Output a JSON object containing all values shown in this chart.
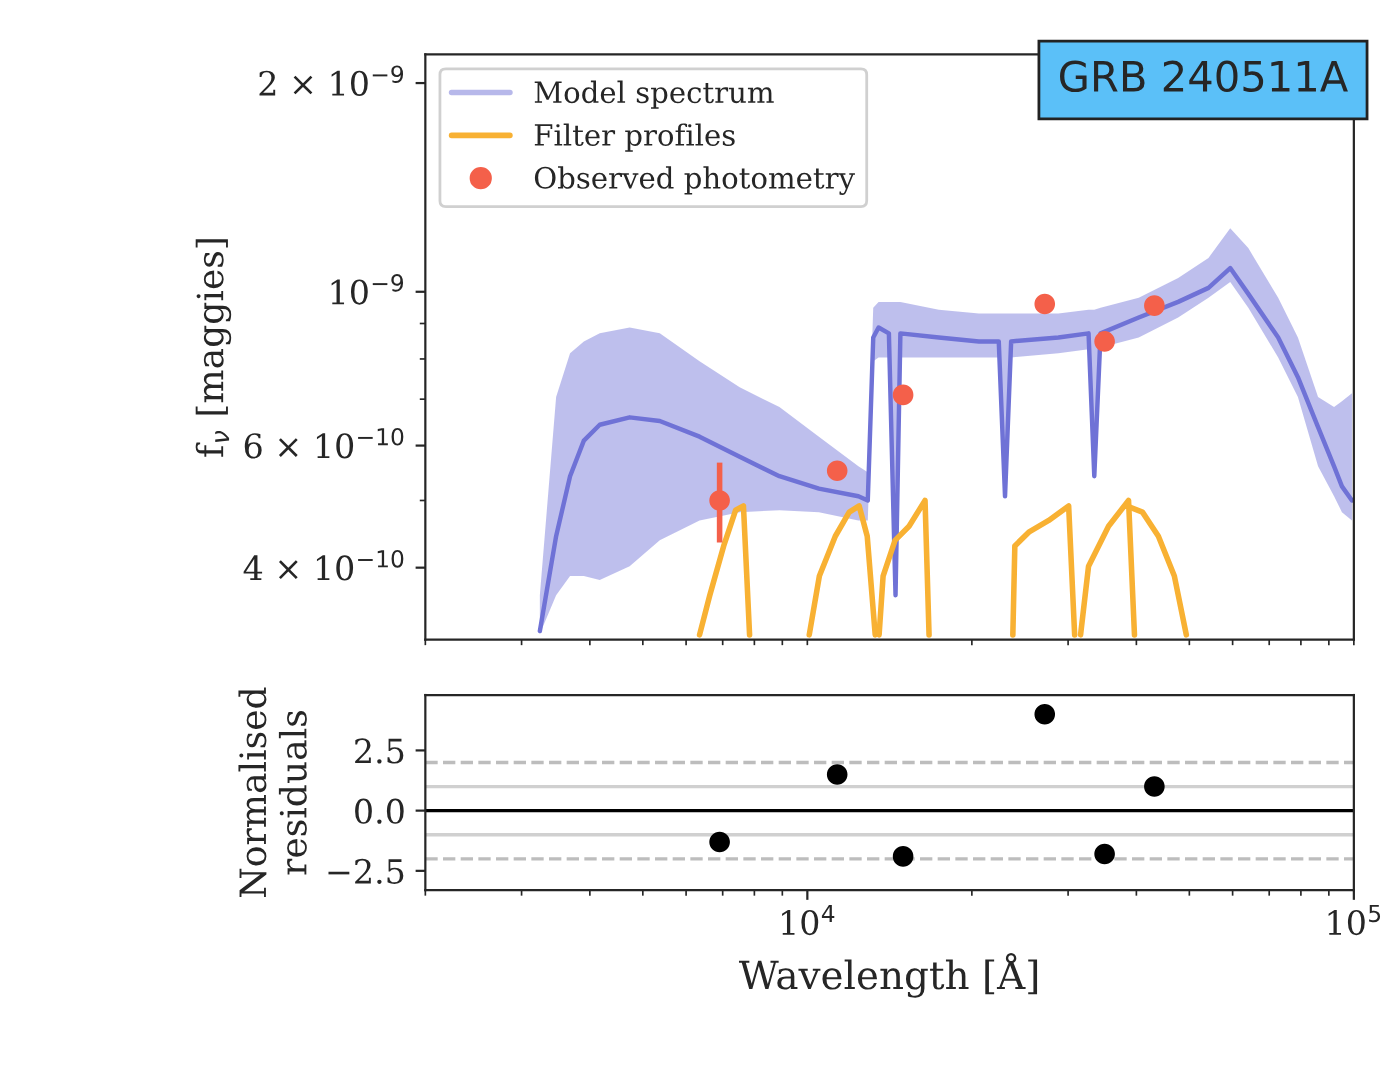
{
  "chart_data": [
    {
      "type": "line",
      "ylabel": "f$_{ν}$ [maggies]",
      "log": "xy",
      "grid": false,
      "legend": "top left",
      "tick_labels": "y",
      "annotations": [
        "GRB 240511A"
      ],
      "xlim": [
        2000,
        100000
      ],
      "xticks": [
        {
          "value": 2000,
          "label": null
        },
        {
          "value": 3000,
          "label": null
        },
        {
          "value": 4000,
          "label": null
        },
        {
          "value": 5000,
          "label": null
        },
        {
          "value": 6000,
          "label": null
        },
        {
          "value": 7000,
          "label": null
        },
        {
          "value": 8000,
          "label": null
        },
        {
          "value": 9000,
          "label": null
        },
        {
          "value": 10000,
          "label": null
        },
        {
          "value": 20000,
          "label": null
        },
        {
          "value": 30000,
          "label": null
        },
        {
          "value": 40000,
          "label": null
        },
        {
          "value": 50000,
          "label": null
        },
        {
          "value": 60000,
          "label": null
        },
        {
          "value": 70000,
          "label": null
        },
        {
          "value": 80000,
          "label": null
        },
        {
          "value": 90000,
          "label": null
        },
        {
          "value": 100000,
          "label": null
        }
      ],
      "ylim": [
        3.15e-10,
        2.2e-09
      ],
      "yticks": [
        {
          "value": 4e-10,
          "label": "4 × 10$^{−10}$"
        },
        {
          "value": 5e-10,
          "label": null
        },
        {
          "value": 6e-10,
          "label": "6 × 10$^{−10}$"
        },
        {
          "value": 7e-10,
          "label": null
        },
        {
          "value": 8e-10,
          "label": null
        },
        {
          "value": 9e-10,
          "label": null
        },
        {
          "value": 1e-09,
          "label": "10$^{−9}$"
        },
        {
          "value": 2e-09,
          "label": "2 × 10$^{−9}$"
        }
      ],
      "series": [
        {
          "name": "Model spectrum",
          "type": "line",
          "color": "#6f72d6",
          "line_style": "solid",
          "x": [
            3240,
            3470,
            3680,
            3900,
            4170,
            4730,
            5370,
            6350,
            7520,
            8890,
            10500,
            12400,
            12900,
            13200,
            13500,
            14100,
            14500,
            14800,
            17400,
            20600,
            22400,
            23000,
            23600,
            28800,
            32700,
            33500,
            34400,
            40400,
            47700,
            54200,
            59400,
            64100,
            72700,
            79000,
            86000,
            92000,
            95100,
            99200
          ],
          "values": [
            3.24e-10,
            4.44e-10,
            5.42e-10,
            6.1e-10,
            6.43e-10,
            6.59e-10,
            6.51e-10,
            6.18e-10,
            5.78e-10,
            5.42e-10,
            5.2e-10,
            5.07e-10,
            5e-10,
            8.59e-10,
            8.88e-10,
            8.71e-10,
            3.65e-10,
            8.71e-10,
            8.59e-10,
            8.48e-10,
            8.48e-10,
            5.07e-10,
            8.48e-10,
            8.59e-10,
            8.71e-10,
            5.42e-10,
            8.71e-10,
            9.18e-10,
            9.67e-10,
            1.013e-09,
            1.082e-09,
            9.93e-10,
            8.59e-10,
            7.53e-10,
            6.38e-10,
            5.6e-10,
            5.24e-10,
            5e-10
          ],
          "upper": [
            3.65e-10,
            7.05e-10,
            8.15e-10,
            8.48e-10,
            8.71e-10,
            8.88e-10,
            8.71e-10,
            7.94e-10,
            7.28e-10,
            6.82e-10,
            6.18e-10,
            5.6e-10,
            5.49e-10,
            9.48e-10,
            9.67e-10,
            9.67e-10,
            9.67e-10,
            9.67e-10,
            9.42e-10,
            9.3e-10,
            9.3e-10,
            9.3e-10,
            9.3e-10,
            9.3e-10,
            9.42e-10,
            9.42e-10,
            9.48e-10,
            9.8e-10,
            1.047e-09,
            1.119e-09,
            1.235e-09,
            1.156e-09,
            9.8e-10,
            8.59e-10,
            7.05e-10,
            6.82e-10,
            6.95e-10,
            7.14e-10
          ],
          "lower": [
            3.21e-10,
            3.65e-10,
            3.89e-10,
            3.89e-10,
            3.84e-10,
            4.02e-10,
            4.38e-10,
            4.68e-10,
            4.81e-10,
            4.84e-10,
            4.81e-10,
            4.68e-10,
            4.68e-10,
            7.94e-10,
            8.04e-10,
            8.04e-10,
            3.65e-10,
            8.04e-10,
            8.04e-10,
            8.04e-10,
            8.04e-10,
            5.07e-10,
            8.04e-10,
            8.15e-10,
            8.26e-10,
            5.42e-10,
            8.31e-10,
            8.59e-10,
            9.18e-10,
            9.8e-10,
            1.033e-09,
            9.48e-10,
            8.04e-10,
            7.05e-10,
            5.6e-10,
            5.07e-10,
            4.81e-10,
            4.68e-10
          ]
        },
        {
          "name": "Filter profiles",
          "type": "line",
          "color": "#f8b133",
          "x": [
            6350,
            6630,
            7030,
            7390,
            7640,
            7840
          ],
          "values": [
            3.2e-10,
            3.65e-10,
            4.3e-10,
            4.84e-10,
            4.91e-10,
            3.2e-10
          ]
        },
        {
          "type": "line",
          "color": "#f8b133",
          "x": [
            10080,
            10520,
            11250,
            11930,
            12440,
            12870,
            13310
          ],
          "values": [
            3.2e-10,
            3.89e-10,
            4.44e-10,
            4.81e-10,
            4.91e-10,
            4.44e-10,
            3.2e-10
          ]
        },
        {
          "type": "line",
          "color": "#f8b133",
          "x": [
            13530,
            13760,
            14470,
            15350,
            16420,
            16700
          ],
          "values": [
            3.2e-10,
            3.89e-10,
            4.38e-10,
            4.59e-10,
            5e-10,
            3.2e-10
          ]
        },
        {
          "type": "line",
          "color": "#f8b133",
          "x": [
            23770,
            23970,
            25420,
            27650,
            30070,
            30840
          ],
          "values": [
            3.2e-10,
            4.3e-10,
            4.5e-10,
            4.68e-10,
            4.91e-10,
            3.2e-10
          ]
        },
        {
          "type": "line",
          "color": "#f8b133",
          "x": [
            31620,
            32700,
            35570,
            38700,
            39680
          ],
          "values": [
            3.2e-10,
            4.02e-10,
            4.59e-10,
            5e-10,
            3.2e-10
          ]
        },
        {
          "type": "line",
          "color": "#f8b133",
          "x": [
            38370,
            41040,
            43890,
            46940,
            49370
          ],
          "values": [
            4.91e-10,
            4.81e-10,
            4.44e-10,
            3.89e-10,
            3.2e-10
          ]
        },
        {
          "name": "Observed photometry",
          "type": "scatter",
          "color": "#f4604a",
          "marker": "circle",
          "x": [
            6910,
            11340,
            14970,
            27190,
            34990,
            43150
          ],
          "values": [
            5e-10,
            5.52e-10,
            7.1e-10,
            9.6e-10,
            8.48e-10,
            9.55e-10
          ],
          "errors": [
            [
              4.35e-10,
              5.67e-10
            ],
            null,
            null,
            null,
            null,
            null
          ]
        }
      ]
    },
    {
      "type": "scatter",
      "xlabel": "Wavelength [Å]",
      "ylabel": "Normalised\nresiduals",
      "log": "x",
      "grid": false,
      "xlim": [
        2000,
        100000
      ],
      "xticks": [
        {
          "value": 2000,
          "label": null
        },
        {
          "value": 3000,
          "label": null
        },
        {
          "value": 4000,
          "label": null
        },
        {
          "value": 5000,
          "label": null
        },
        {
          "value": 6000,
          "label": null
        },
        {
          "value": 7000,
          "label": null
        },
        {
          "value": 8000,
          "label": null
        },
        {
          "value": 9000,
          "label": null
        },
        {
          "value": 10000,
          "label": "10$^{4}$"
        },
        {
          "value": 20000,
          "label": null
        },
        {
          "value": 30000,
          "label": null
        },
        {
          "value": 40000,
          "label": null
        },
        {
          "value": 50000,
          "label": null
        },
        {
          "value": 60000,
          "label": null
        },
        {
          "value": 70000,
          "label": null
        },
        {
          "value": 80000,
          "label": null
        },
        {
          "value": 90000,
          "label": null
        },
        {
          "value": 100000,
          "label": "10$^{5}$"
        }
      ],
      "ylim": [
        -3.3,
        4.8
      ],
      "yticks": [
        {
          "value": -2.5,
          "label": "−2.5"
        },
        {
          "value": 0,
          "label": "0.0"
        },
        2.5
      ],
      "ref_lines": [
        {
          "axis": "y",
          "value": 1,
          "color": "#d0d0d0",
          "line_style": "solid"
        },
        {
          "axis": "y",
          "value": -1,
          "color": "#d0d0d0",
          "line_style": "solid"
        },
        {
          "axis": "y",
          "value": 2,
          "color": "#bdbdbd",
          "line_style": "dashed"
        },
        {
          "axis": "y",
          "value": -2,
          "color": "#bdbdbd",
          "line_style": "dashed"
        },
        {
          "axis": "y",
          "value": 0,
          "color": "#000000",
          "line_style": "solid"
        }
      ],
      "series": [
        {
          "color": "#000000",
          "marker": "circle",
          "x": [
            6910,
            11340,
            14970,
            27190,
            34990,
            43150
          ],
          "values": [
            -1.3,
            1.5,
            -1.9,
            4.0,
            -1.8,
            1.0
          ]
        }
      ]
    }
  ]
}
